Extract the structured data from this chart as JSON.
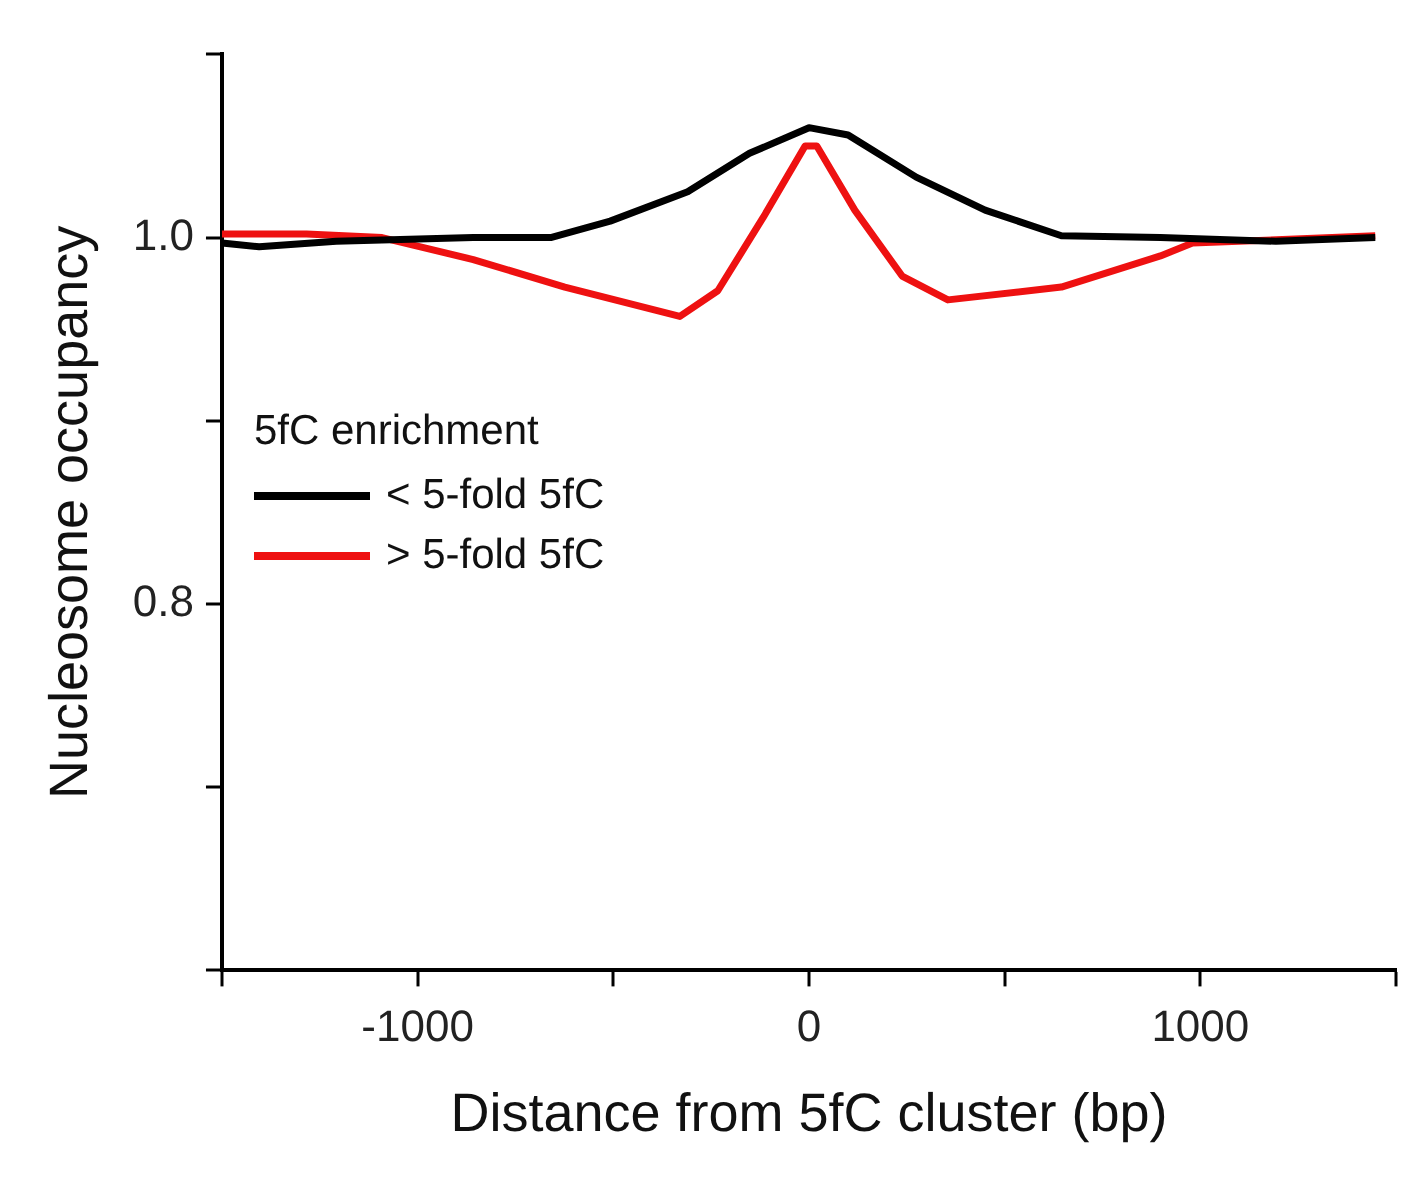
{
  "chart_data": {
    "type": "line",
    "xlabel": "Distance from 5fC cluster (bp)",
    "ylabel": "Nucleosome occupancy",
    "legend_title": "5fC enrichment",
    "legend": "left",
    "grid": false,
    "marker": "none",
    "line_style": "solid",
    "xlim": [
      -1500,
      1500
    ],
    "xticks": [
      {
        "value": -1500,
        "label": null
      },
      -1000,
      {
        "value": -500,
        "label": null
      },
      0,
      {
        "value": 500,
        "label": null
      },
      1000,
      {
        "value": 1500,
        "label": null
      }
    ],
    "ylim": [
      0.6,
      1.1
    ],
    "yticks": [
      {
        "value": 0.6,
        "label": null
      },
      {
        "value": 0.7,
        "label": null
      },
      {
        "value": 0.8,
        "label": "0.8"
      },
      {
        "value": 0.9,
        "label": null
      },
      {
        "value": 1.0,
        "label": "1.0"
      },
      {
        "value": 1.1,
        "label": null
      }
    ],
    "series": [
      {
        "name": "< 5-fold 5fC",
        "color": "#000000",
        "x": [
          -1500,
          -1405,
          -1208,
          -858,
          -660,
          -508,
          -310,
          -152,
          0,
          100,
          274,
          450,
          645,
          898,
          1193,
          1447
        ],
        "values": [
          0.997,
          0.995,
          0.998,
          1.0,
          1.0,
          1.009,
          1.025,
          1.046,
          1.06,
          1.056,
          1.033,
          1.015,
          1.001,
          1.0,
          0.998,
          1.0
        ]
      },
      {
        "name": "> 5-fold 5fC",
        "color": "#ee1111",
        "x": [
          -1500,
          -1284,
          -1091,
          -858,
          -624,
          -330,
          -233,
          -117,
          -10,
          20,
          117,
          238,
          355,
          645,
          898,
          980,
          1447
        ],
        "values": [
          1.002,
          1.002,
          1.0,
          0.988,
          0.973,
          0.957,
          0.971,
          1.011,
          1.05,
          1.05,
          1.015,
          0.979,
          0.966,
          0.973,
          0.99,
          0.997,
          1.001
        ]
      }
    ]
  }
}
